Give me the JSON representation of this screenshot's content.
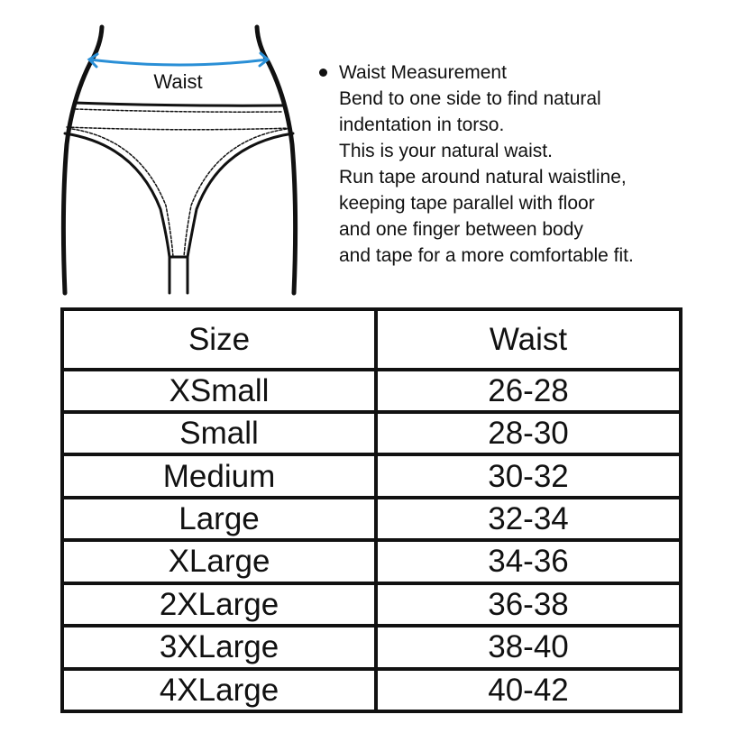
{
  "illustration": {
    "waist_label": "Waist",
    "arrow_color": "#2a8fd6"
  },
  "description": {
    "title": "Waist Measurement",
    "lines": [
      "Bend to one side to find natural",
      "indentation in torso.",
      "This is your natural waist.",
      "Run tape around natural waistline,",
      "keeping tape parallel with floor",
      "and one finger between body",
      "and tape for a more comfortable fit."
    ]
  },
  "table": {
    "headers": [
      "Size",
      "Waist"
    ],
    "rows": [
      [
        "XSmall",
        "26-28"
      ],
      [
        "Small",
        "28-30"
      ],
      [
        "Medium",
        "30-32"
      ],
      [
        "Large",
        "32-34"
      ],
      [
        "XLarge",
        "34-36"
      ],
      [
        "2XLarge",
        "36-38"
      ],
      [
        "3XLarge",
        "38-40"
      ],
      [
        "4XLarge",
        "40-42"
      ]
    ]
  }
}
